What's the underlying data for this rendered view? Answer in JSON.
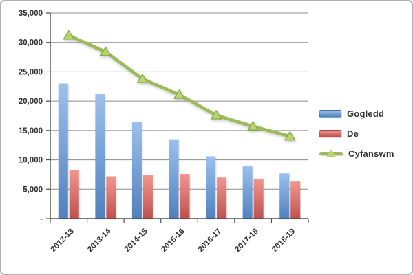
{
  "chart_data": {
    "type": "bar",
    "subtype": "grouped-bars-with-total-line",
    "title": "",
    "categories": [
      "2012-13",
      "2013-14",
      "2014-15",
      "2015-16",
      "2016-17",
      "2017-18",
      "2018-19"
    ],
    "series": [
      {
        "name": "Gogledd",
        "type": "bar",
        "values": [
          23000,
          21200,
          16400,
          13500,
          10600,
          8900,
          7700
        ]
      },
      {
        "name": "De",
        "type": "bar",
        "values": [
          8200,
          7200,
          7400,
          7600,
          7000,
          6800,
          6300
        ]
      },
      {
        "name": "Cyfanswm",
        "type": "line",
        "values": [
          31200,
          28400,
          23800,
          21100,
          17600,
          15700,
          14000
        ]
      }
    ],
    "xlabel": "",
    "ylabel": "",
    "ylim": [
      0,
      35000
    ],
    "y_tick_step": 5000,
    "y_tick_labels": [
      "-",
      "5,000",
      "10,000",
      "15,000",
      "20,000",
      "25,000",
      "30,000",
      "35,000"
    ],
    "grid": true,
    "legend_position": "right",
    "x_label_rotation_deg": -45
  },
  "colors": {
    "gogledd_top": "#9dc0ee",
    "gogledd_bottom": "#4f81bd",
    "de_top": "#f0978f",
    "de_bottom": "#c0504d",
    "cyfanswm_line": "#9bbb59",
    "cyfanswm_marker_fill": "#b9d36f",
    "cyfanswm_marker_stroke": "#84a740",
    "gridline": "#8c8c8c",
    "axis": "#4d4d4d",
    "text": "#333333",
    "frame_border": "#b0b0b0"
  }
}
